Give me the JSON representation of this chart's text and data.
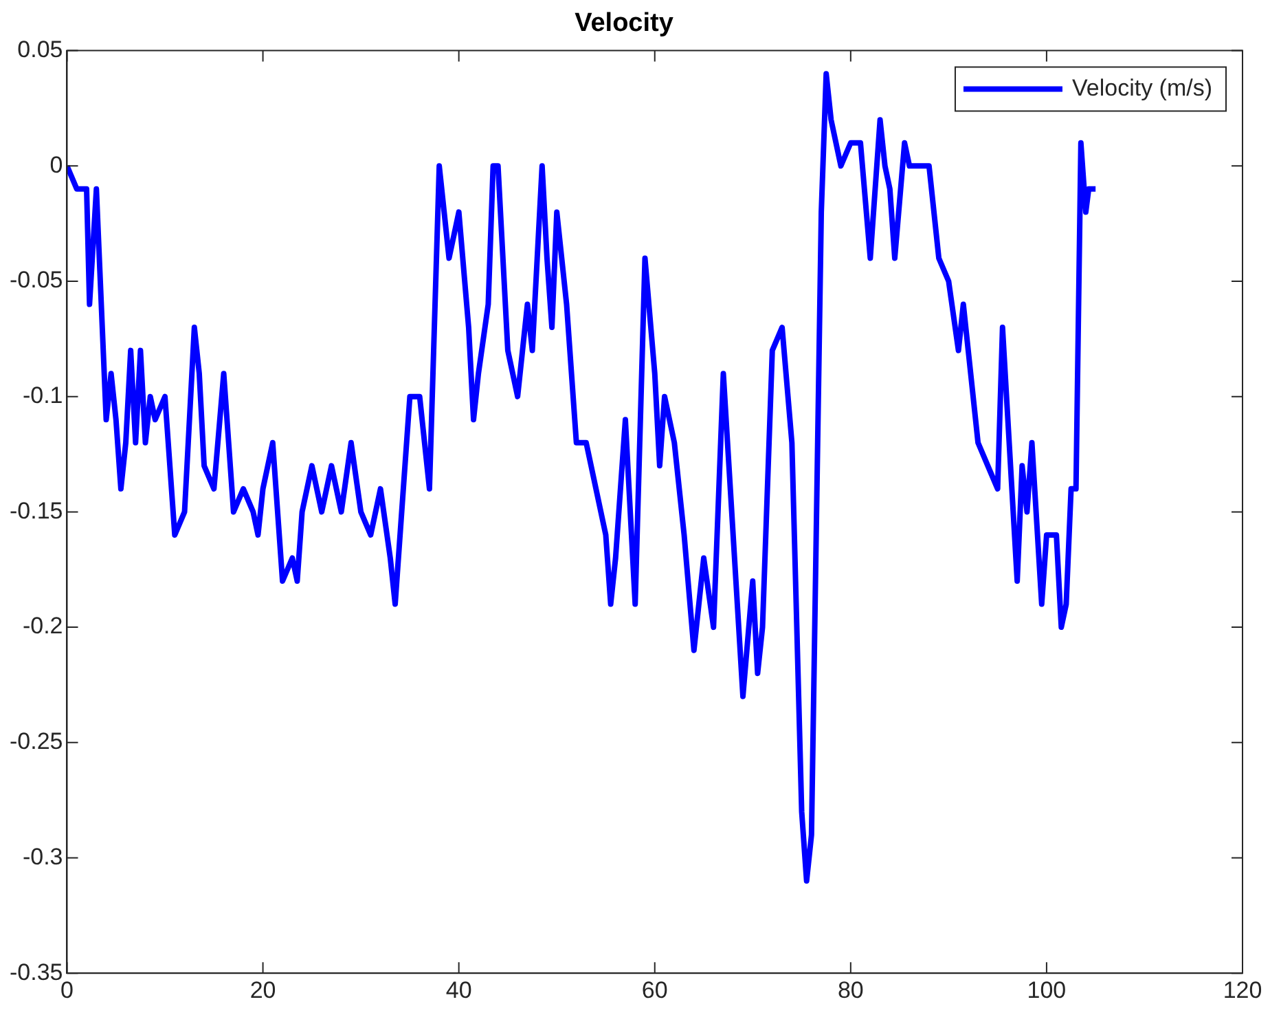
{
  "chart_data": {
    "type": "line",
    "title": "Velocity",
    "xlim": [
      0,
      120
    ],
    "xticks": [
      0,
      20,
      40,
      60,
      80,
      100,
      120
    ],
    "ylim": [
      -0.35,
      0.05
    ],
    "yticks": [
      -0.35,
      -0.3,
      -0.25,
      -0.2,
      -0.15,
      -0.1,
      -0.05,
      0,
      0.05
    ],
    "grid": false,
    "legend": "top right",
    "marker": "none",
    "line_style": "solid",
    "series": [
      {
        "name": "Velocity (m/s)",
        "color": "#0000ff",
        "x": [
          0,
          1,
          2,
          2.3,
          3,
          4,
          4.5,
          5,
          5.5,
          6,
          6.5,
          7,
          7.5,
          8,
          8.5,
          9,
          10,
          10.5,
          11,
          12,
          13,
          13.5,
          14,
          15,
          16,
          16.5,
          17,
          18,
          19,
          19.5,
          20,
          21,
          22,
          23,
          23.5,
          24,
          25,
          26,
          27,
          28,
          29,
          30,
          31,
          32,
          33,
          33.5,
          35,
          36,
          37,
          38,
          39,
          40,
          41,
          41.5,
          42,
          43,
          43.5,
          44,
          45,
          46,
          47,
          47.5,
          48,
          48.5,
          49,
          49.5,
          50,
          51,
          52,
          53,
          54,
          55,
          55.5,
          56,
          57,
          58,
          59,
          60,
          60.5,
          61,
          62,
          63,
          64,
          65,
          66,
          67,
          68,
          69,
          70,
          70.5,
          71,
          72,
          73,
          74,
          75,
          75.5,
          76,
          77,
          77.5,
          78,
          79,
          80,
          81,
          82,
          83,
          83.5,
          84,
          84.5,
          85.5,
          86,
          88,
          89,
          90,
          91,
          91.5,
          92,
          93,
          94,
          95,
          95.5,
          97,
          97.5,
          98,
          98.5,
          99.5,
          100,
          101,
          101.5,
          102,
          102.5,
          103,
          103.5,
          104,
          104.3,
          105
        ],
        "values": [
          0,
          -0.01,
          -0.01,
          -0.06,
          -0.01,
          -0.11,
          -0.09,
          -0.11,
          -0.14,
          -0.12,
          -0.08,
          -0.12,
          -0.08,
          -0.12,
          -0.1,
          -0.11,
          -0.1,
          -0.13,
          -0.16,
          -0.15,
          -0.07,
          -0.09,
          -0.13,
          -0.14,
          -0.09,
          -0.12,
          -0.15,
          -0.14,
          -0.15,
          -0.16,
          -0.14,
          -0.12,
          -0.18,
          -0.17,
          -0.18,
          -0.15,
          -0.13,
          -0.15,
          -0.13,
          -0.15,
          -0.12,
          -0.15,
          -0.16,
          -0.14,
          -0.17,
          -0.19,
          -0.1,
          -0.1,
          -0.14,
          0,
          -0.04,
          -0.02,
          -0.07,
          -0.11,
          -0.09,
          -0.06,
          0,
          0,
          -0.08,
          -0.1,
          -0.06,
          -0.08,
          -0.04,
          0,
          -0.04,
          -0.07,
          -0.02,
          -0.06,
          -0.12,
          -0.12,
          -0.14,
          -0.16,
          -0.19,
          -0.17,
          -0.11,
          -0.19,
          -0.04,
          -0.09,
          -0.13,
          -0.1,
          -0.12,
          -0.16,
          -0.21,
          -0.17,
          -0.2,
          -0.09,
          -0.16,
          -0.23,
          -0.18,
          -0.22,
          -0.2,
          -0.08,
          -0.07,
          -0.12,
          -0.28,
          -0.31,
          -0.29,
          -0.02,
          0.04,
          0.02,
          0,
          0.01,
          0.01,
          -0.04,
          0.02,
          0,
          -0.01,
          -0.04,
          0.01,
          0,
          0,
          -0.04,
          -0.05,
          -0.08,
          -0.06,
          -0.08,
          -0.12,
          -0.13,
          -0.14,
          -0.07,
          -0.18,
          -0.13,
          -0.15,
          -0.12,
          -0.19,
          -0.16,
          -0.16,
          -0.2,
          -0.19,
          -0.14,
          -0.14,
          0.01,
          -0.02,
          -0.01,
          -0.01
        ]
      }
    ]
  }
}
